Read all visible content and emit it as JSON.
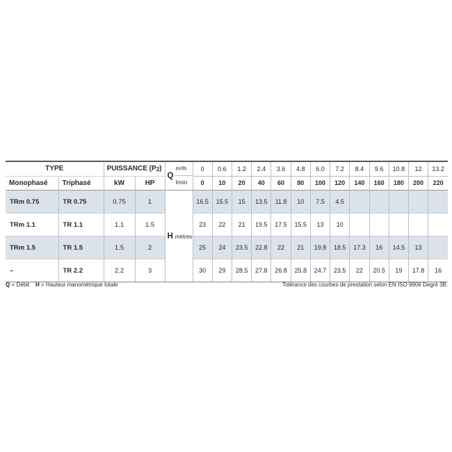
{
  "table": {
    "header": {
      "type_label": "TYPE",
      "puissance_prefix": "PUISSANCE (P",
      "puissance_sub": "2",
      "puissance_suffix": ")",
      "monophase_label": "Monophasé",
      "triphase_label": "Triphasé",
      "kw_label": "kW",
      "hp_label": "HP",
      "q_label": "Q",
      "flow_unit_top": "m³/h",
      "flow_unit_bottom": "l/min",
      "flow_m3h": [
        "0",
        "0.6",
        "1.2",
        "2.4",
        "3.6",
        "4.8",
        "6.0",
        "7.2",
        "8.4",
        "9.6",
        "10.8",
        "12",
        "13.2"
      ],
      "flow_lmin": [
        "0",
        "10",
        "20",
        "40",
        "60",
        "80",
        "100",
        "120",
        "140",
        "160",
        "180",
        "200",
        "220"
      ]
    },
    "h_column": {
      "label": "H",
      "unit": "mètres"
    },
    "rows": [
      {
        "monophase": "TRm 0.75",
        "triphase": "TR 0.75",
        "kw": "0.75",
        "hp": "1",
        "h": [
          "16.5",
          "15.5",
          "15",
          "13.5",
          "11.8",
          "10",
          "7.5",
          "4.5",
          "",
          "",
          "",
          "",
          ""
        ]
      },
      {
        "monophase": "TRm 1.1",
        "triphase": "TR 1.1",
        "kw": "1.1",
        "hp": "1.5",
        "h": [
          "23",
          "22",
          "21",
          "19.5",
          "17.5",
          "15.5",
          "13",
          "10",
          "",
          "",
          "",
          "",
          ""
        ]
      },
      {
        "monophase": "TRm 1.5",
        "triphase": "TR 1.5",
        "kw": "1.5",
        "hp": "2",
        "h": [
          "25",
          "24",
          "23.5",
          "22.8",
          "22",
          "21",
          "19.8",
          "18.5",
          "17.3",
          "16",
          "14.5",
          "13",
          ""
        ]
      },
      {
        "monophase": "–",
        "triphase": "TR 2.2",
        "kw": "2.2",
        "hp": "3",
        "h": [
          "30",
          "29",
          "28.5",
          "27.8",
          "26.8",
          "25.8",
          "24.7",
          "23.5",
          "22",
          "20.5",
          "19",
          "17.8",
          "16"
        ]
      }
    ]
  },
  "footer": {
    "legend_q_bold": "Q",
    "legend_q_text": " = Débit",
    "legend_h_bold": "H",
    "legend_h_text": " = Hauteur manométrique totale",
    "tolerance_note": "Tolérance des courbes de prestation selon EN ISO 9906 Degré 3B."
  },
  "colors": {
    "row_shade": "#dbe2e9",
    "grid_line": "#b7bec4",
    "header_separator": "#8f969c",
    "top_border": "#54575b",
    "bottom_border": "#7e8286",
    "text": "#26292e"
  }
}
